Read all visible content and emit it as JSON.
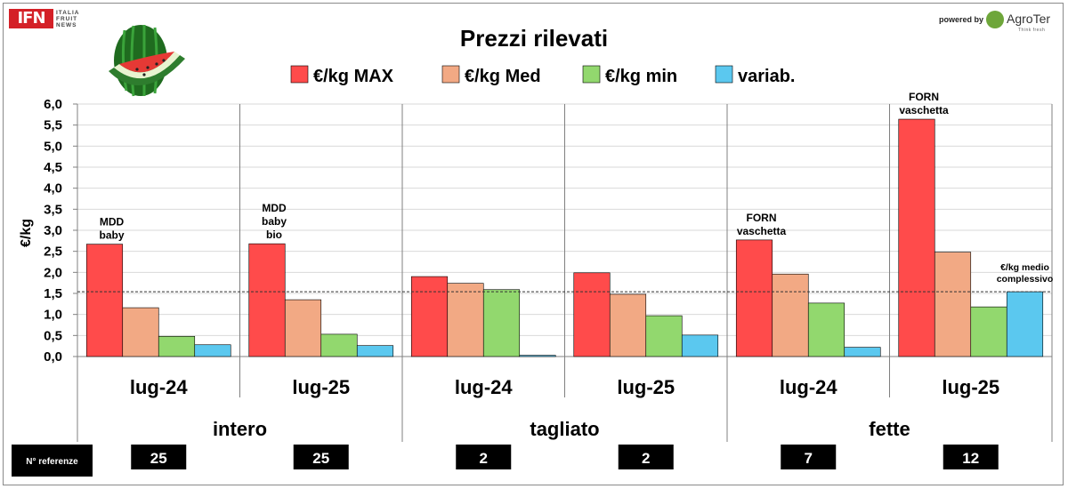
{
  "brand": {
    "ifn": "IFN",
    "ifn_lines": [
      "ITALIA",
      "FRUIT",
      "NEWS"
    ],
    "powered_by": "powered by",
    "agroter": "AgroTer",
    "agroter_tag": "Think fresh"
  },
  "melon_icon": "watermelon-icon",
  "chart_data": {
    "type": "bar",
    "title": "Prezzi rilevati",
    "ylabel": "€/kg",
    "xlabel": "",
    "ylim": [
      0,
      6
    ],
    "yticks": [
      "0,0",
      "0,5",
      "1,0",
      "1,5",
      "2,0",
      "2,5",
      "3,0",
      "3,5",
      "4,0",
      "4,5",
      "5,0",
      "5,5",
      "6,0"
    ],
    "grid": "horizontal",
    "legend_position": "top-center",
    "colors": {
      "max": "#ff4b4b",
      "med": "#f2a984",
      "min": "#92d86e",
      "variab": "#5bc8ef",
      "grid": "#d9d9d9",
      "reference_line": "#333333"
    },
    "categories": [
      "lug-24",
      "lug-25",
      "lug-24",
      "lug-25",
      "lug-24",
      "lug-25"
    ],
    "groups": [
      {
        "label": "intero",
        "span": [
          0,
          1
        ]
      },
      {
        "label": "tagliato",
        "span": [
          2,
          3
        ]
      },
      {
        "label": "fette",
        "span": [
          4,
          5
        ]
      }
    ],
    "series": [
      {
        "name": "€/kg MAX",
        "values": [
          2.67,
          2.68,
          1.9,
          1.99,
          2.77,
          5.64
        ]
      },
      {
        "name": "€/kg Med",
        "values": [
          1.16,
          1.35,
          1.74,
          1.48,
          1.96,
          2.48
        ]
      },
      {
        "name": "€/kg  min",
        "values": [
          0.48,
          0.53,
          1.59,
          0.97,
          1.27,
          1.18
        ]
      },
      {
        "name": "variab.",
        "values": [
          0.28,
          0.26,
          0.03,
          0.51,
          0.22,
          1.54
        ]
      }
    ],
    "reference_line": {
      "value": 1.54,
      "label": [
        "€/kg medio",
        "complessivo"
      ]
    },
    "annotations": [
      {
        "category": 0,
        "lines": [
          "MDD",
          "baby"
        ]
      },
      {
        "category": 1,
        "lines": [
          "MDD",
          "baby",
          "bio"
        ]
      },
      {
        "category": 4,
        "lines": [
          "FORN",
          "vaschetta"
        ]
      },
      {
        "category": 5,
        "lines": [
          "FORN",
          "vaschetta"
        ]
      }
    ],
    "references": {
      "label": "N° referenze",
      "values": [
        "25",
        "25",
        "2",
        "2",
        "7",
        "12"
      ]
    }
  }
}
